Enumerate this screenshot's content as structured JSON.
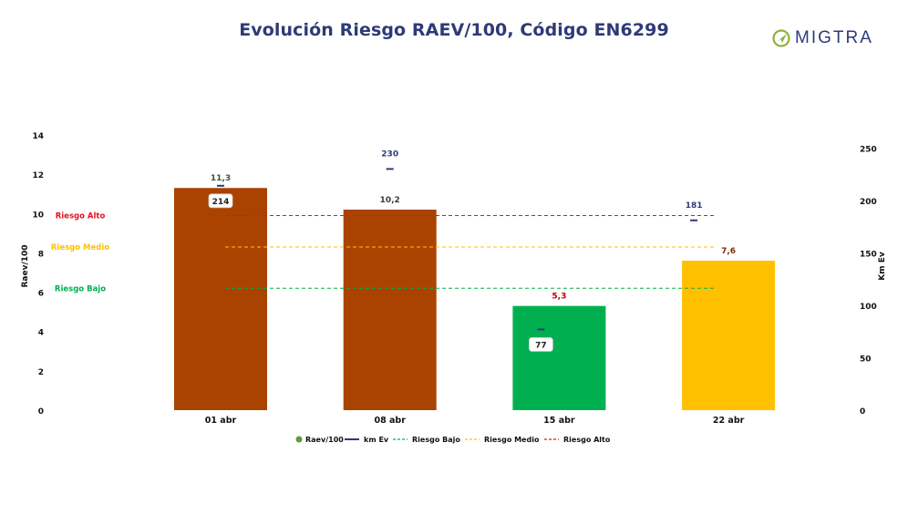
{
  "header": {
    "title": "Evolución Riesgo RAEV/100, Código EN6299",
    "logo_text": "MIGTRA"
  },
  "colors": {
    "title": "#2e3a78",
    "km_line": "#2e3a78",
    "riesgo_alto": "#e0141e",
    "riesgo_medio": "#ffc000",
    "riesgo_bajo": "#00b050",
    "bar_alto": "#ab4300",
    "bar_medio": "#ffc000",
    "bar_bajo": "#00b050",
    "logo_accent": "#8db33a"
  },
  "chart_data": {
    "type": "bar",
    "categories": [
      "01 abr",
      "08 abr",
      "15 abr",
      "22 abr"
    ],
    "series": [
      {
        "name": "Raev/100",
        "axis": "left",
        "values": [
          11.3,
          10.2,
          5.3,
          7.6
        ],
        "labels": [
          "11,3",
          "10,2",
          "5,3",
          "7,6"
        ],
        "label_colors": [
          "#2e5a3a",
          "#3a3a3a",
          "#c00000",
          "#7a2e00"
        ],
        "bar_colors": [
          "#ab4300",
          "#ab4300",
          "#00b050",
          "#ffc000"
        ]
      },
      {
        "name": "km Ev",
        "axis": "right",
        "values": [
          214,
          230,
          77,
          181
        ],
        "labels": [
          "214",
          "230",
          "77",
          "181"
        ],
        "boxed": [
          true,
          false,
          true,
          false
        ]
      }
    ],
    "reference_lines": [
      {
        "name": "Riesgo Bajo",
        "label": "Riesgo Bajo",
        "value": 6.2,
        "color": "#00b050"
      },
      {
        "name": "Riesgo Medio",
        "label": "Riesgo Medio",
        "value": 8.3,
        "color": "#ffc000"
      },
      {
        "name": "Riesgo Alto",
        "label": "Riesgo Alto",
        "value": 9.9,
        "color": "#e0141e"
      }
    ],
    "ylabel": "Raev/100",
    "y2label": "Km Ev",
    "ylim": [
      0,
      14
    ],
    "yticks": [
      "0",
      "2",
      "4",
      "6",
      "8",
      "10",
      "12",
      "14"
    ],
    "y2lim": [
      0,
      262.5
    ],
    "y2ticks": [
      "0",
      "50",
      "100",
      "150",
      "200",
      "250"
    ],
    "legend": [
      {
        "label": "Raev/100",
        "kind": "dot",
        "color": "#5b9b3a"
      },
      {
        "label": "km Ev",
        "kind": "line",
        "color": "#2e3a78"
      },
      {
        "label": "Riesgo Bajo",
        "kind": "dash",
        "color": "#00b050"
      },
      {
        "label": "Riesgo Medio",
        "kind": "dash",
        "color": "#ffc000"
      },
      {
        "label": "Riesgo Alto",
        "kind": "dash",
        "color": "#e0141e"
      }
    ],
    "legend_position": "bottom-center"
  }
}
